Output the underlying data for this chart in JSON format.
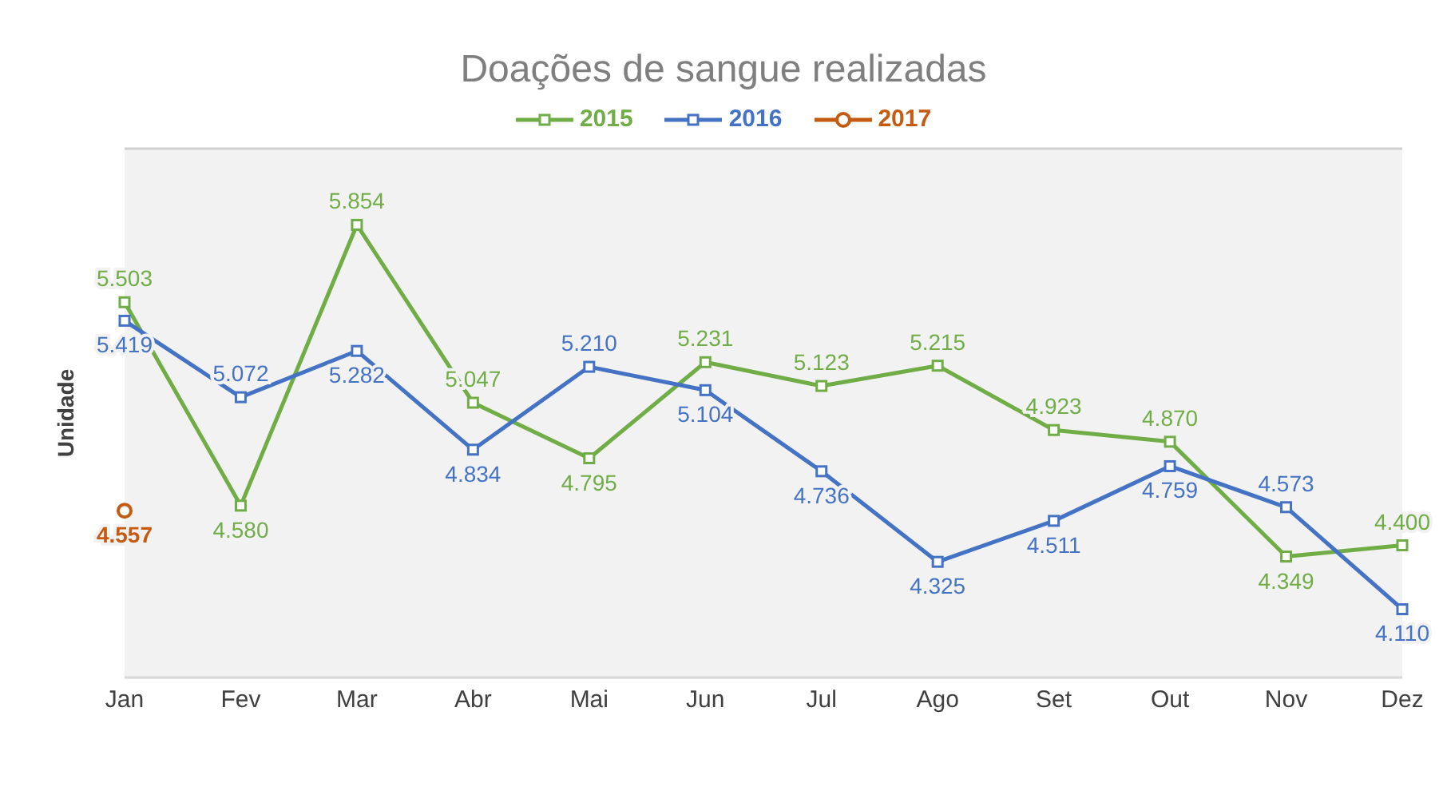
{
  "chart_data": {
    "type": "line",
    "title": "Doações de sangue realizadas",
    "ylabel": "Unidade",
    "categories": [
      "Jan",
      "Fev",
      "Mar",
      "Abr",
      "Mai",
      "Jun",
      "Jul",
      "Ago",
      "Set",
      "Out",
      "Nov",
      "Dez"
    ],
    "series": [
      {
        "name": "2015",
        "color": "#70ad47",
        "marker": "square",
        "values": [
          5503,
          4580,
          5854,
          5047,
          4795,
          5231,
          5123,
          5215,
          4923,
          4870,
          4349,
          4400
        ],
        "value_labels": [
          "5.503",
          "4.580",
          "5.854",
          "5.047",
          "4.795",
          "5.231",
          "5.123",
          "5.215",
          "4.923",
          "4.870",
          "4.349",
          "4.400"
        ]
      },
      {
        "name": "2016",
        "color": "#4472c4",
        "marker": "square",
        "values": [
          5419,
          5072,
          5282,
          4834,
          5210,
          5104,
          4736,
          4325,
          4511,
          4759,
          4573,
          4110
        ],
        "value_labels": [
          "5.419",
          "5.072",
          "5.282",
          "4.834",
          "5.210",
          "5.104",
          "4.736",
          "4.325",
          "4.511",
          "4.759",
          "4.573",
          "4.110"
        ]
      },
      {
        "name": "2017",
        "color": "#c55a11",
        "marker": "circle",
        "values": [
          4557,
          null,
          null,
          null,
          null,
          null,
          null,
          null,
          null,
          null,
          null,
          null
        ],
        "value_labels": [
          "4.557",
          null,
          null,
          null,
          null,
          null,
          null,
          null,
          null,
          null,
          null,
          null
        ]
      }
    ],
    "ylim": [
      3800,
      6200
    ],
    "grid": "y",
    "legend": "top",
    "tick_labels": "x"
  }
}
